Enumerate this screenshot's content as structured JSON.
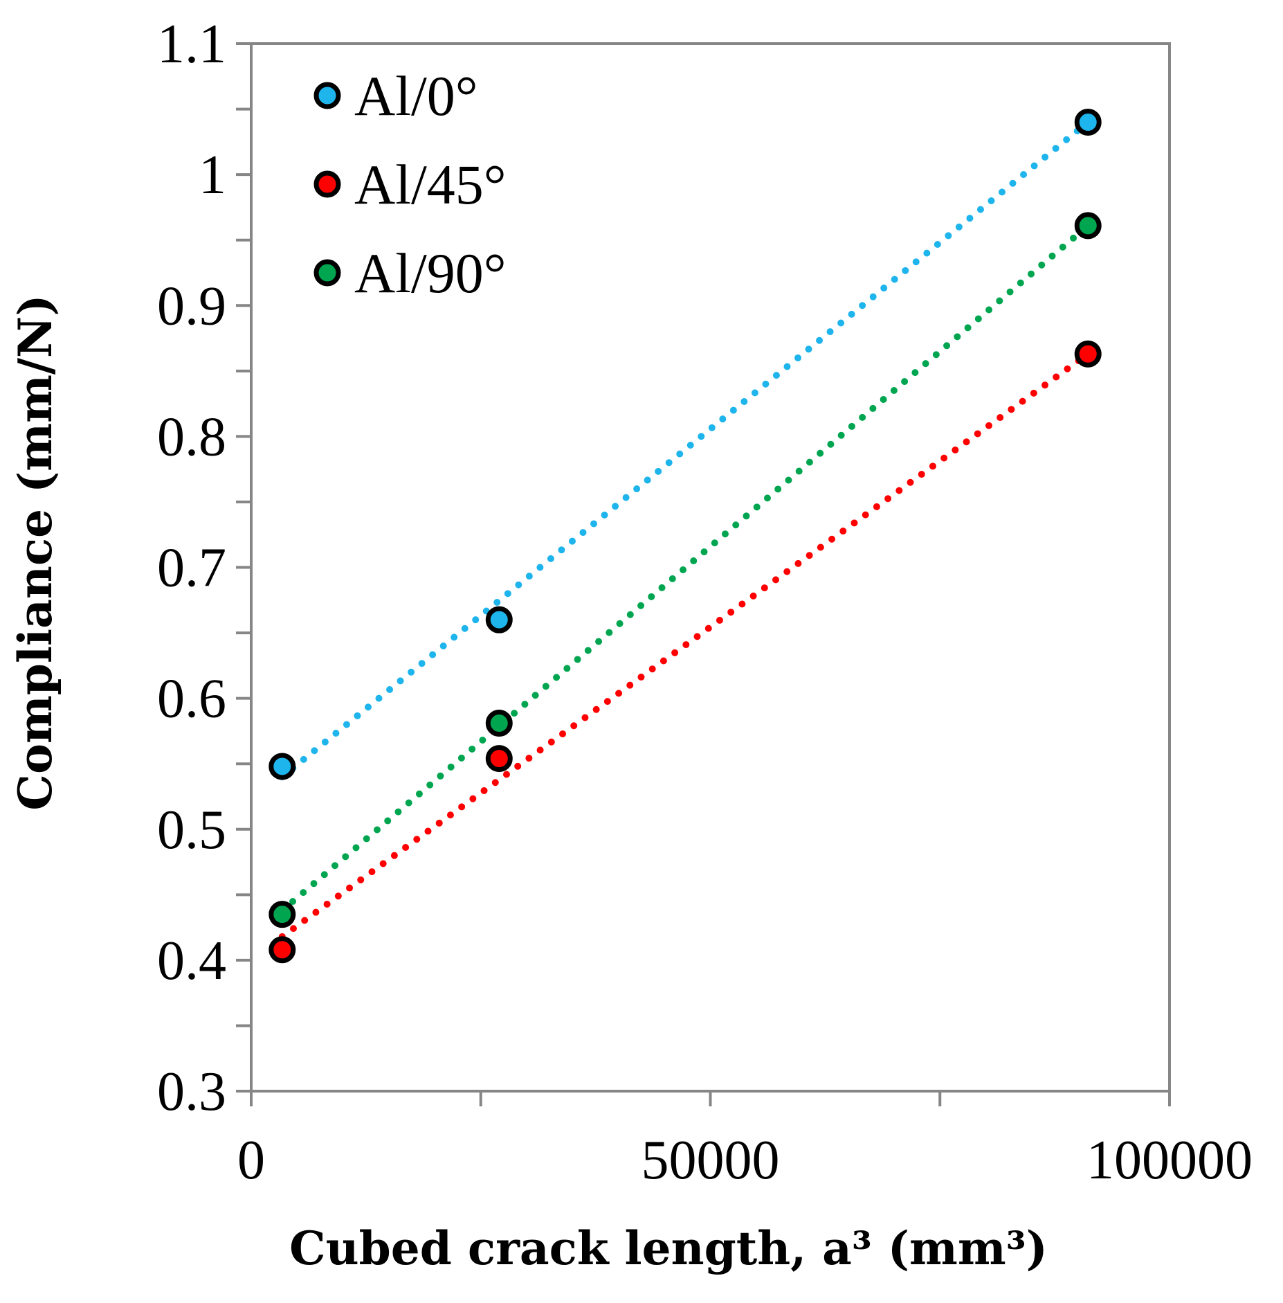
{
  "chart_data": {
    "type": "scatter",
    "title": "",
    "xlabel": "Cubed crack length, a³ (mm³)",
    "ylabel": "Compliance (mm/N)",
    "xlim": [
      0,
      100000
    ],
    "ylim": [
      0.3,
      1.1
    ],
    "x_major_ticks": [
      0,
      50000,
      100000
    ],
    "x_minor_step": 25000,
    "x_tick_labels": [
      "0",
      "50000",
      "100000"
    ],
    "y_major_ticks": [
      0.3,
      0.4,
      0.5,
      0.6,
      0.7,
      0.8,
      0.9,
      1.0,
      1.1
    ],
    "y_minor_step": 0.05,
    "y_tick_labels": [
      "0.3",
      "0.4",
      "0.5",
      "0.6",
      "0.7",
      "0.8",
      "0.9",
      "1",
      "1.1"
    ],
    "grid": false,
    "legend_position": "top-left",
    "trendline": "linear, dotted",
    "series": [
      {
        "name": "Al/0°",
        "color": "#1eb4ec",
        "x": [
          3375,
          27000,
          91125
        ],
        "y": [
          0.548,
          0.66,
          1.04
        ],
        "trend": [
          0.54,
          1.04
        ]
      },
      {
        "name": "Al/45°",
        "color": "#ff0000",
        "x": [
          3375,
          27000,
          91125
        ],
        "y": [
          0.408,
          0.554,
          0.863
        ],
        "trend": [
          0.418,
          0.863
        ]
      },
      {
        "name": "Al/90°",
        "color": "#00a550",
        "x": [
          3375,
          27000,
          91125
        ],
        "y": [
          0.435,
          0.581,
          0.961
        ],
        "trend": [
          0.438,
          0.961
        ]
      }
    ]
  }
}
